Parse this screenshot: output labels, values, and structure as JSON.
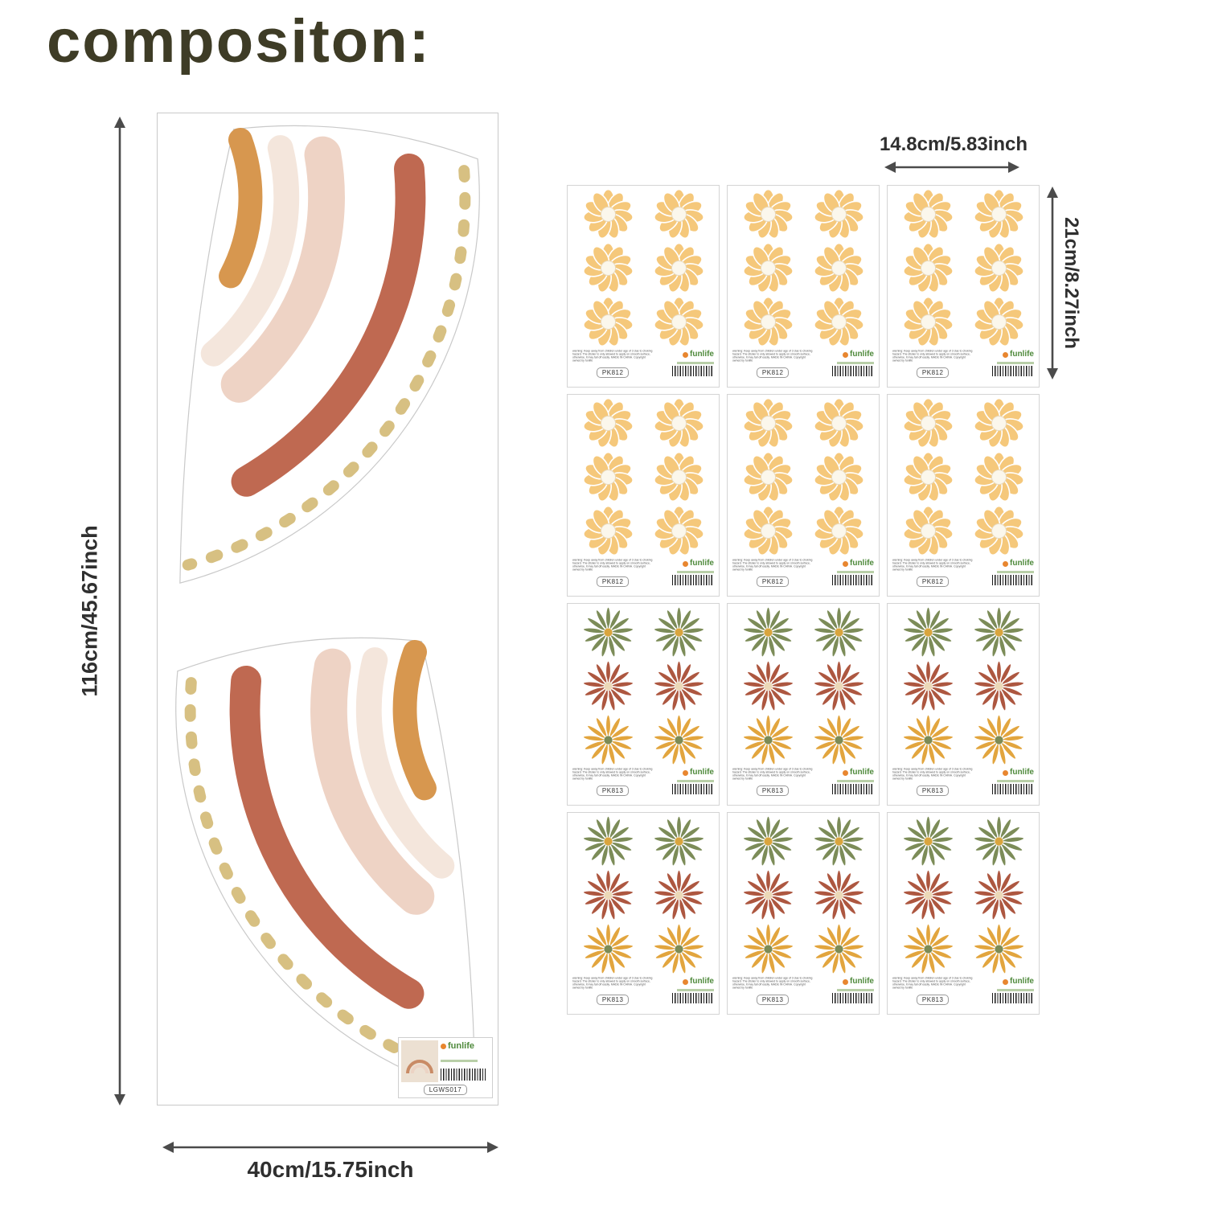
{
  "title": "compositon:",
  "colors": {
    "title": "#3e3c26",
    "arrow": "#4b4b4b",
    "dim_text": "#2f2f2f",
    "panel_border": "#c9c9c9",
    "sheet_border": "#d4d4d4",
    "rainbow_orange": "#d7974f",
    "rainbow_cream": "#f4e6dc",
    "rainbow_blush": "#eed3c5",
    "rainbow_terracotta": "#bf6951",
    "rainbow_dash": "#d7c082",
    "logo_green": "#4f8a3c",
    "logo_orange": "#e8862f"
  },
  "left_panel": {
    "height_label": "116cm/45.67inch",
    "width_label": "40cm/15.75inch",
    "brand": "funlife",
    "sku": "LGWS017"
  },
  "sheets": {
    "width_label": "14.8cm/5.83inch",
    "height_label": "21cm/8.27inch",
    "brand": "funlife",
    "warning_text": "warning: Keep away from children under age of 3 due to choking hazard. The sticker is only allowed to apply on smooth surface, otherwise, it may fall off easily. MADE IN CHINA. Copyright owned by funlife",
    "layout": [
      "yellow",
      "yellow",
      "yellow",
      "yellow",
      "yellow",
      "yellow",
      "multi",
      "multi",
      "multi",
      "multi",
      "multi",
      "multi"
    ],
    "types": {
      "yellow": {
        "sku": "PK812",
        "flowers": [
          "yellow_daisy",
          "yellow_daisy",
          "yellow_daisy",
          "yellow_daisy",
          "yellow_daisy",
          "yellow_daisy"
        ]
      },
      "multi": {
        "sku": "PK813",
        "flowers": [
          "green_aster",
          "green_aster",
          "rust_aster",
          "rust_aster",
          "gold_aster",
          "gold_aster"
        ]
      }
    }
  },
  "flowers": {
    "yellow_daisy": {
      "petal": "#f5c87b",
      "center": "#fbf7ec",
      "center_ring": "#e8d9bd",
      "petals": 11,
      "style": "round"
    },
    "green_aster": {
      "petal": "#7c8c58",
      "center": "#d9a53e",
      "center_ring": "",
      "petals": 13,
      "style": "thin"
    },
    "rust_aster": {
      "petal": "#ad5740",
      "center": "#ecd9b8",
      "center_ring": "",
      "petals": 13,
      "style": "thin"
    },
    "gold_aster": {
      "petal": "#e2a53e",
      "center": "#7c8b55",
      "center_ring": "",
      "petals": 13,
      "style": "thin"
    }
  }
}
